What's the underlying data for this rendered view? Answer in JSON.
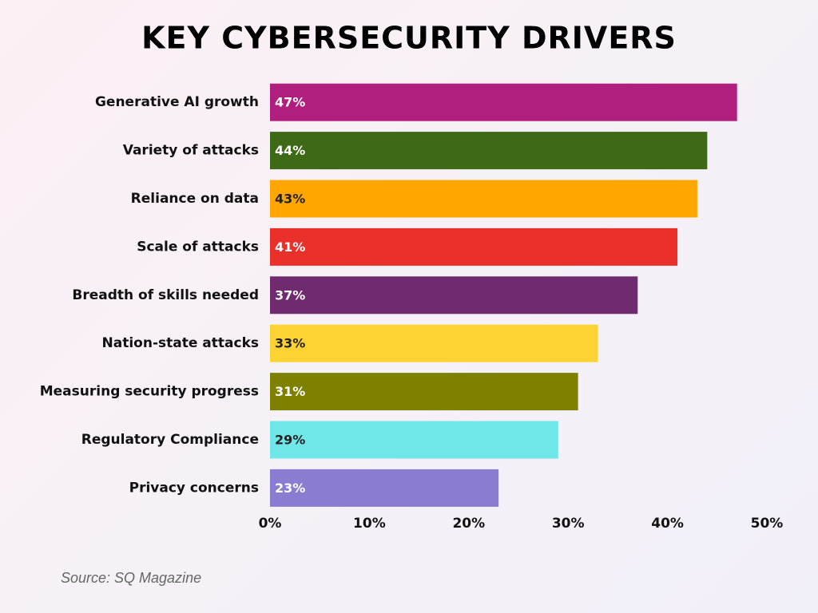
{
  "chart_data": {
    "type": "hbar",
    "title": "KEY CYBERSECURITY DRIVERS",
    "categories": [
      "Generative AI growth",
      "Variety of attacks",
      "Reliance on data",
      "Scale of attacks",
      "Breadth of skills needed",
      "Nation-state attacks",
      "Measuring security progress",
      "Regulatory Compliance",
      "Privacy concerns"
    ],
    "values": [
      47,
      44,
      43,
      41,
      37,
      33,
      31,
      29,
      23
    ],
    "value_labels": [
      "47%",
      "44%",
      "43%",
      "41%",
      "37%",
      "33%",
      "31%",
      "29%",
      "23%"
    ],
    "colors": [
      "#b01f7e",
      "#3e6a17",
      "#ffa600",
      "#e9302a",
      "#6f2a70",
      "#fdd334",
      "#7e8100",
      "#6fe7e9",
      "#8a7cd0"
    ],
    "xlim": [
      0,
      50
    ],
    "xticks": [
      {
        "value": 0,
        "label": "0%"
      },
      {
        "value": 10,
        "label": "10%"
      },
      {
        "value": 20,
        "label": "20%"
      },
      {
        "value": 30,
        "label": "30%"
      },
      {
        "value": 40,
        "label": "40%"
      },
      {
        "value": 50,
        "label": "50%"
      }
    ],
    "grid": false,
    "source": "Source: SQ Magazine"
  }
}
